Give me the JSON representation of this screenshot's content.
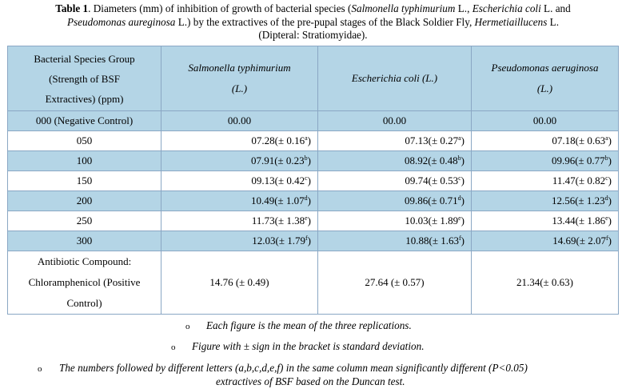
{
  "caption": {
    "label": "Table 1",
    "pre": ". Diameters (mm) of inhibition of growth of bacterial species (",
    "sp1": "Salmonella typhimurium",
    "mid1": " L., ",
    "sp2": "Escherichia coli",
    "mid2": " L. and",
    "sp3": "Pseudomonas aureginosa",
    "mid3": " L.) by the extractives of the pre-pupal stages of the Black Soldier Fly, ",
    "sp4": "Hermetiaillucens",
    "mid4": " L.",
    "line3": "(Dipteral: Stratiomyidae)."
  },
  "table": {
    "header": {
      "col0_line1": "Bacterial Species Group",
      "col0_line2": "(Strength of BSF",
      "col0_line3": "Extractives) (ppm)",
      "col1_line1": "Salmonella typhimurium",
      "col1_line2": "(L.)",
      "col2": "Escherichia coli (L.)",
      "col3_line1": "Pseudomonas aeruginosa",
      "col3_line2": "(L.)"
    },
    "rows": [
      {
        "group": "000 (Negative Control)",
        "c1": "00.00",
        "c2": "00.00",
        "c3": "00.00",
        "s1": "",
        "s2": "",
        "s3": ""
      },
      {
        "group": "050",
        "c1": "07.28(± 0.16",
        "s1": "a",
        "c2": "07.13(± 0.27",
        "s2": "a",
        "c3": "07.18(± 0.63",
        "s3": "a"
      },
      {
        "group": "100",
        "c1": "07.91(± 0.23",
        "s1": "b",
        "c2": "08.92(± 0.48",
        "s2": "b",
        "c3": "09.96(± 0.77",
        "s3": "b"
      },
      {
        "group": "150",
        "c1": "09.13(± 0.42",
        "s1": "c",
        "c2": "09.74(± 0.53",
        "s2": "c",
        "c3": "11.47(± 0.82",
        "s3": "c"
      },
      {
        "group": "200",
        "c1": "10.49(± 1.07",
        "s1": "d",
        "c2": "09.86(± 0.71",
        "s2": "d",
        "c3": "12.56(± 1.23",
        "s3": "d"
      },
      {
        "group": "250",
        "c1": "11.73(± 1.38",
        "s1": "e",
        "c2": "10.03(± 1.89",
        "s2": "e",
        "c3": "13.44(± 1.86",
        "s3": "e"
      },
      {
        "group": "300",
        "c1": "12.03(± 1.79",
        "s1": "f",
        "c2": "10.88(± 1.63",
        "s2": "f",
        "c3": "14.69(± 2.07",
        "s3": "f"
      }
    ],
    "antibiotic": {
      "line1": "Antibiotic Compound:",
      "line2": "Chloramphenicol (Positive",
      "line3": "Control)",
      "c1": "14.76 (± 0.49)",
      "c2": "27.64 (± 0.57)",
      "c3": "21.34(± 0.63)"
    }
  },
  "notes": {
    "bullet": "o",
    "n1": "Each figure is the mean of the three replications.",
    "n2": "Figure with ± sign in the bracket is standard deviation.",
    "n3_line1": "The numbers followed by different letters (a,b,c,d,e,f) in the same column mean significantly different (P<0.05)",
    "n3_line2": "extractives of BSF based on the Duncan test."
  }
}
